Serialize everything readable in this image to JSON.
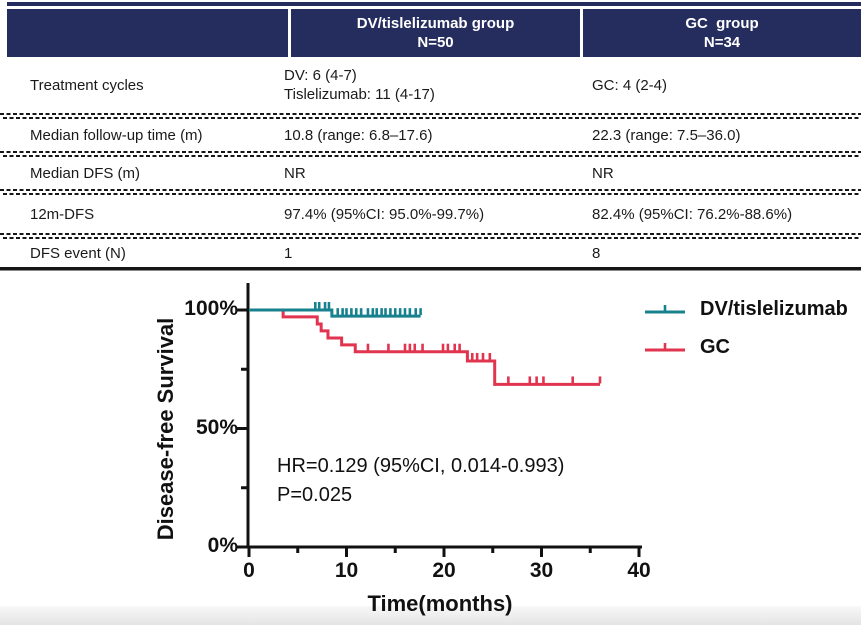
{
  "table": {
    "header": {
      "col2_line1": "DV/tislelizumab group",
      "col2_line2": "N=50",
      "col3_line1": "GC  group",
      "col3_line2": "N=34"
    },
    "rows": [
      {
        "label": "Treatment cycles",
        "dv": [
          "DV: 6 (4-7)",
          "Tislelizumab: 11 (4-17)"
        ],
        "gc": [
          "GC: 4 (2-4)"
        ]
      },
      {
        "label": "Median follow-up time (m)",
        "dv": [
          "10.8 (range: 6.8–17.6)"
        ],
        "gc": [
          "22.3 (range: 7.5–36.0)"
        ]
      },
      {
        "label": "Median DFS (m)",
        "dv": [
          "NR"
        ],
        "gc": [
          "NR"
        ]
      },
      {
        "label": "12m-DFS",
        "dv": [
          "97.4% (95%CI: 95.0%-99.7%)"
        ],
        "gc": [
          "82.4% (95%CI: 76.2%-88.6%)"
        ]
      },
      {
        "label": "DFS event (N)",
        "dv": [
          "1"
        ],
        "gc": [
          "8"
        ]
      }
    ],
    "header_bg": "#252C5E",
    "header_text_color": "#ffffff"
  },
  "chart_data": {
    "type": "line",
    "subtype": "kaplan_meier_step",
    "title": "",
    "xlabel": "Time(months)",
    "ylabel": "Disease-free Survival",
    "xlim": [
      0,
      40
    ],
    "ylim": [
      0,
      100
    ],
    "grid": false,
    "legend_position": "top-right",
    "xticks_major": [
      0,
      10,
      20,
      30,
      40
    ],
    "xticks_minor": [
      5,
      15,
      25,
      35
    ],
    "yticks_major": [
      {
        "value": 0,
        "label": "0%"
      },
      {
        "value": 50,
        "label": "50%"
      },
      {
        "value": 100,
        "label": "100%"
      }
    ],
    "yticks_minor": [
      25,
      75
    ],
    "annotation": [
      "HR=0.129 (95%CI, 0.014-0.993)",
      "P=0.025"
    ],
    "series": [
      {
        "name": "DV/tislelizumab",
        "color": "#17818E",
        "steps": [
          [
            0,
            100
          ],
          [
            8.5,
            100
          ],
          [
            8.5,
            97.4
          ],
          [
            17.6,
            97.4
          ]
        ],
        "censor_marks": [
          [
            6.8,
            100
          ],
          [
            7.2,
            100
          ],
          [
            7.8,
            100
          ],
          [
            8.2,
            100
          ],
          [
            9.1,
            97.4
          ],
          [
            9.6,
            97.4
          ],
          [
            10.0,
            97.4
          ],
          [
            10.5,
            97.4
          ],
          [
            11.0,
            97.4
          ],
          [
            11.5,
            97.4
          ],
          [
            12.2,
            97.4
          ],
          [
            12.7,
            97.4
          ],
          [
            13.1,
            97.4
          ],
          [
            13.6,
            97.4
          ],
          [
            14.0,
            97.4
          ],
          [
            14.5,
            97.4
          ],
          [
            15.0,
            97.4
          ],
          [
            15.5,
            97.4
          ],
          [
            16.0,
            97.4
          ],
          [
            16.5,
            97.4
          ],
          [
            17.1,
            97.4
          ],
          [
            17.6,
            97.4
          ]
        ]
      },
      {
        "name": "GC",
        "color": "#E0344F",
        "steps": [
          [
            0,
            100
          ],
          [
            3.5,
            100
          ],
          [
            3.5,
            97.1
          ],
          [
            7.0,
            97.1
          ],
          [
            7.0,
            94.1
          ],
          [
            7.4,
            94.1
          ],
          [
            7.4,
            91.2
          ],
          [
            8.1,
            91.2
          ],
          [
            8.1,
            88.2
          ],
          [
            9.5,
            88.2
          ],
          [
            9.5,
            85.3
          ],
          [
            10.9,
            85.3
          ],
          [
            10.9,
            82.4
          ],
          [
            22.4,
            82.4
          ],
          [
            22.4,
            78.5
          ],
          [
            25.2,
            78.5
          ],
          [
            25.2,
            68.6
          ],
          [
            36.0,
            68.6
          ]
        ],
        "censor_marks": [
          [
            12.2,
            82.4
          ],
          [
            14.3,
            82.4
          ],
          [
            16.0,
            82.4
          ],
          [
            16.5,
            82.4
          ],
          [
            17.0,
            82.4
          ],
          [
            17.8,
            82.4
          ],
          [
            19.9,
            82.4
          ],
          [
            20.4,
            82.4
          ],
          [
            21.1,
            82.4
          ],
          [
            21.6,
            82.4
          ],
          [
            22.9,
            78.5
          ],
          [
            23.4,
            78.5
          ],
          [
            24.0,
            78.5
          ],
          [
            24.7,
            78.5
          ],
          [
            26.6,
            68.6
          ],
          [
            28.8,
            68.6
          ],
          [
            29.5,
            68.6
          ],
          [
            30.2,
            68.6
          ],
          [
            33.2,
            68.6
          ],
          [
            36.0,
            68.6
          ]
        ]
      }
    ]
  }
}
